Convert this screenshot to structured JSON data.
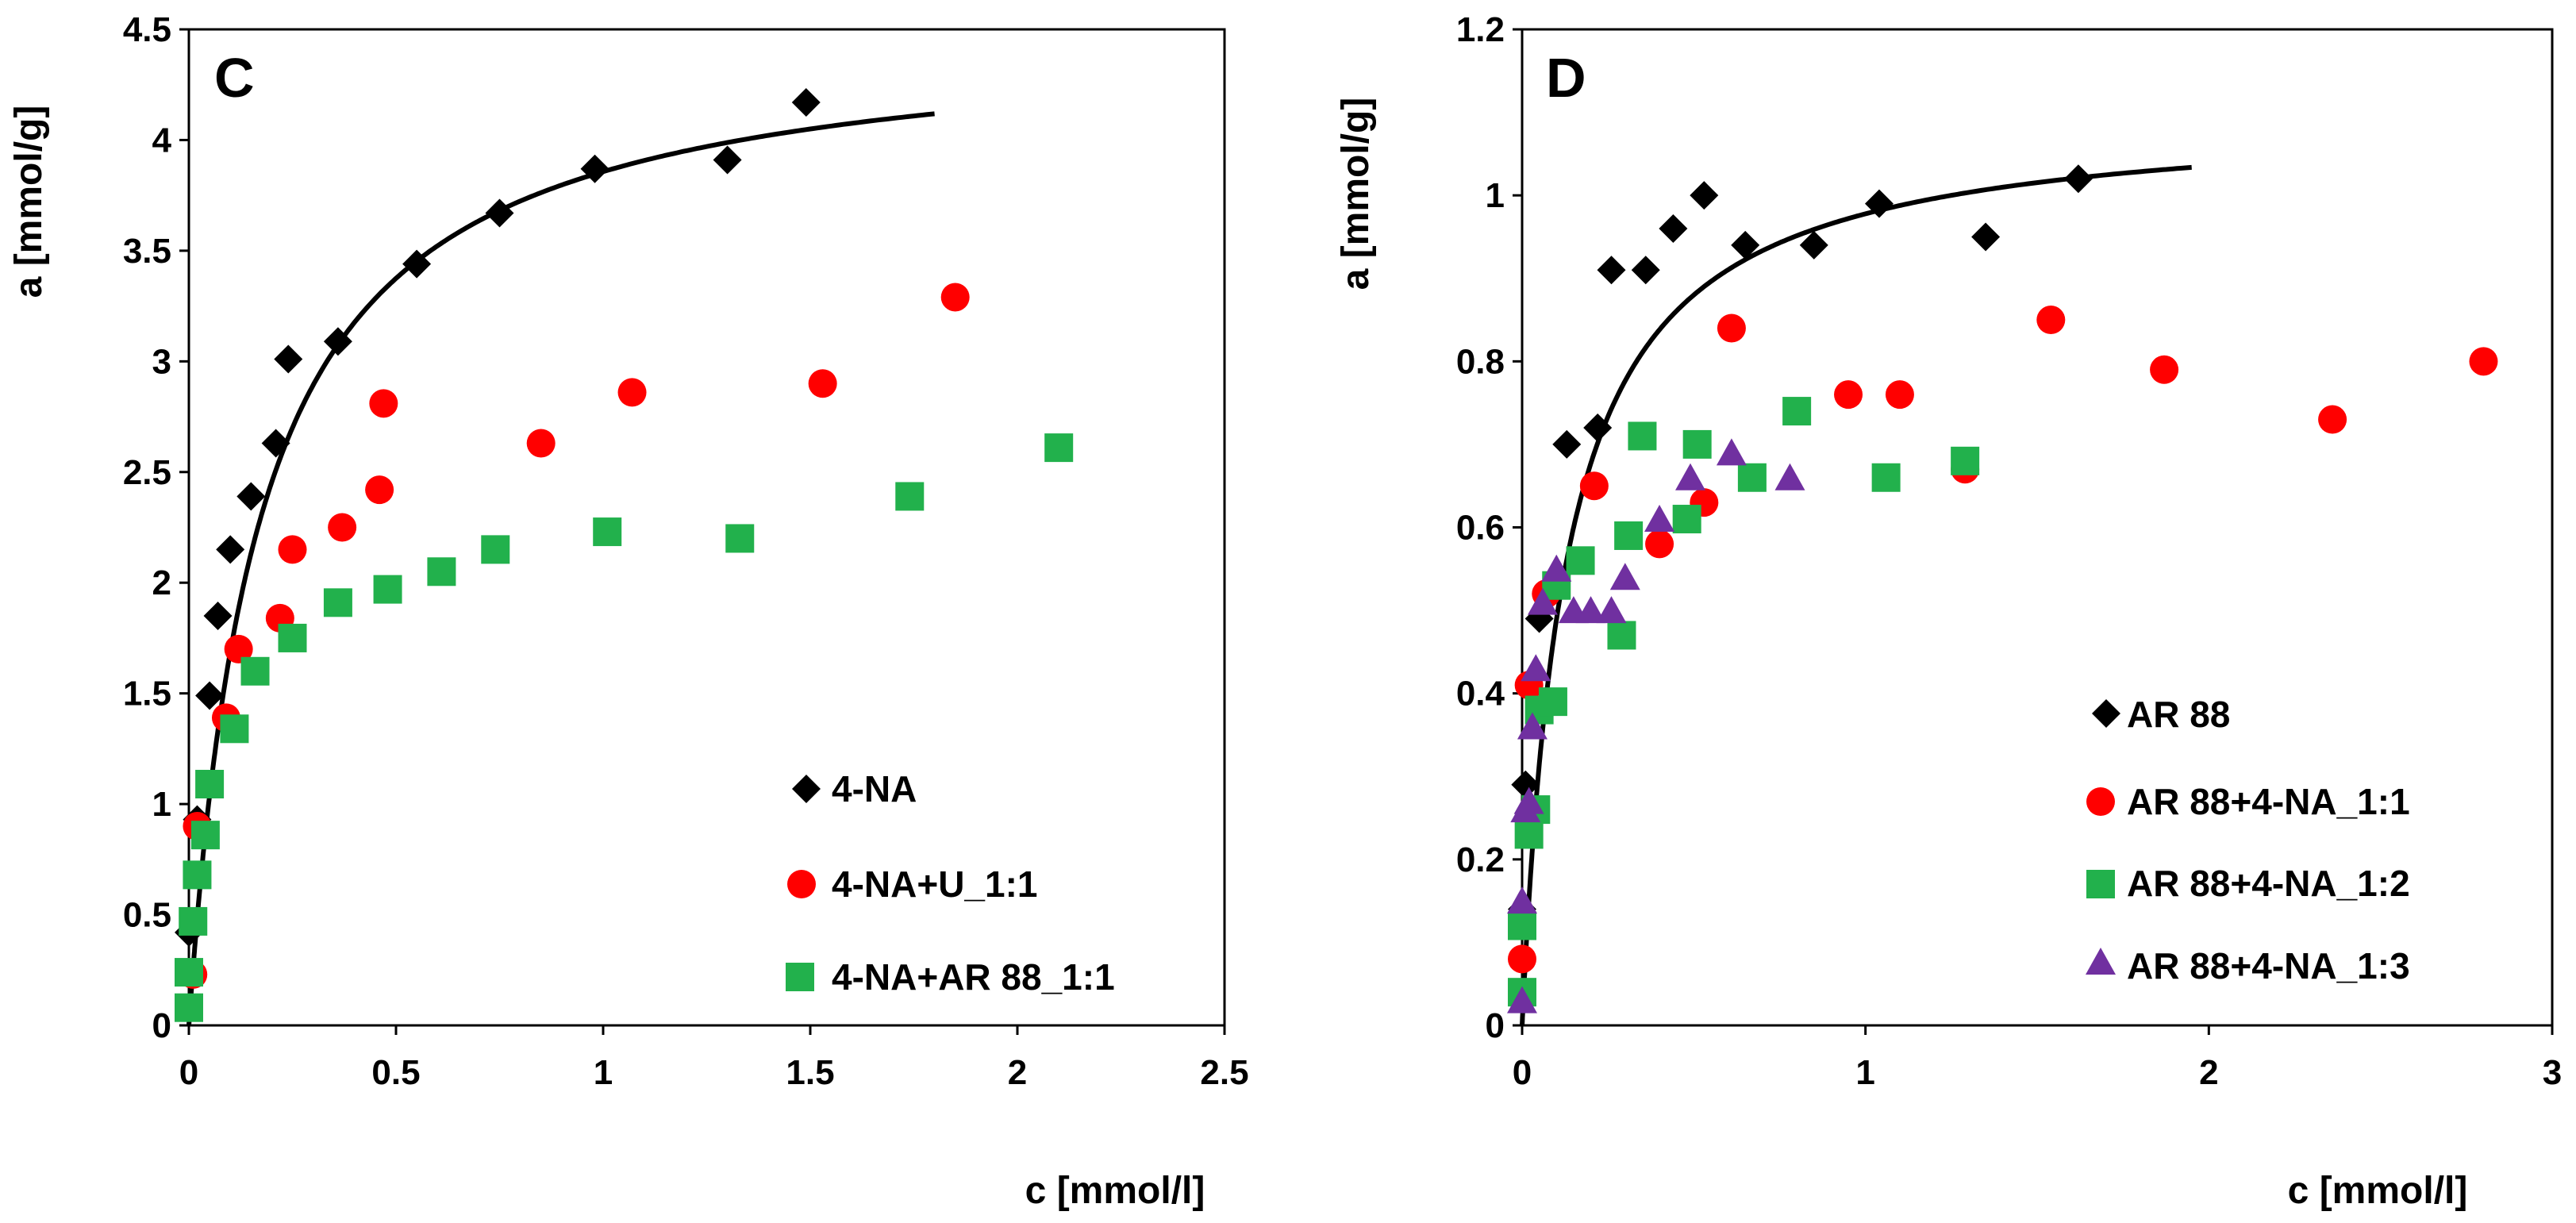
{
  "chart_data": [
    {
      "type": "scatter",
      "panel_label": "C",
      "xlabel": "c [mmol/l]",
      "ylabel": "a [mmol/g]",
      "xlim": [
        0,
        2.5
      ],
      "ylim": [
        0,
        4.5
      ],
      "x_ticks": [
        0,
        0.5,
        1,
        1.5,
        2,
        2.5
      ],
      "x_tick_labels": [
        "0",
        "0.5",
        "1",
        "1.5",
        "2",
        "2.5"
      ],
      "y_ticks": [
        0,
        0.5,
        1,
        1.5,
        2,
        2.5,
        3,
        3.5,
        4,
        4.5
      ],
      "y_tick_labels": [
        "0",
        "0.5",
        "1",
        "1.5",
        "2",
        "2.5",
        "3",
        "3.5",
        "4",
        "4.5"
      ],
      "legend_position": "bottom-right",
      "series": [
        {
          "name": "4-NA",
          "marker": "diamond",
          "color": "#000000",
          "x": [
            0.0,
            0.02,
            0.05,
            0.07,
            0.1,
            0.15,
            0.21,
            0.24,
            0.36,
            0.55,
            0.75,
            0.98,
            1.3,
            1.49
          ],
          "y": [
            0.42,
            0.93,
            1.49,
            1.85,
            2.15,
            2.39,
            2.63,
            3.01,
            3.09,
            3.44,
            3.67,
            3.87,
            3.91,
            4.17
          ]
        },
        {
          "name": "4-NA+U_1:1",
          "marker": "circle",
          "color": "#ff0000",
          "x": [
            0.01,
            0.02,
            0.09,
            0.12,
            0.22,
            0.25,
            0.37,
            0.46,
            0.47,
            0.85,
            1.07,
            1.53,
            1.85
          ],
          "y": [
            0.23,
            0.9,
            1.39,
            1.7,
            1.84,
            2.15,
            2.25,
            2.42,
            2.81,
            2.63,
            2.86,
            2.9,
            3.29
          ]
        },
        {
          "name": "4-NA+AR 88_1:1",
          "marker": "square",
          "color": "#22b14c",
          "x": [
            0.0,
            0.0,
            0.01,
            0.02,
            0.04,
            0.05,
            0.11,
            0.16,
            0.25,
            0.36,
            0.48,
            0.61,
            0.74,
            1.01,
            1.33,
            1.74,
            2.1
          ],
          "y": [
            0.08,
            0.24,
            0.47,
            0.68,
            0.86,
            1.09,
            1.34,
            1.6,
            1.75,
            1.91,
            1.97,
            2.05,
            2.15,
            2.23,
            2.2,
            2.39,
            2.61
          ]
        },
        {
          "name": "4-NA fit",
          "type": "line",
          "color": "#000000",
          "model": "langmuir",
          "qmax": 4.5,
          "K": 6.0,
          "x_range": [
            0,
            1.8
          ]
        }
      ]
    },
    {
      "type": "scatter",
      "panel_label": "D",
      "xlabel": "c [mmol/l]",
      "ylabel": "a [mmol/g]",
      "xlim": [
        0,
        3
      ],
      "ylim": [
        0,
        1.2
      ],
      "x_ticks": [
        0,
        1,
        2,
        3
      ],
      "x_tick_labels": [
        "0",
        "1",
        "2",
        "3"
      ],
      "y_ticks": [
        0,
        0.2,
        0.4,
        0.6,
        0.8,
        1,
        1.2
      ],
      "y_tick_labels": [
        "0",
        "0.2",
        "0.4",
        "0.6",
        "0.8",
        "1",
        "1.2"
      ],
      "legend_position": "bottom-right",
      "series": [
        {
          "name": "AR 88",
          "marker": "diamond",
          "color": "#000000",
          "x": [
            0.0,
            0.01,
            0.05,
            0.13,
            0.22,
            0.26,
            0.36,
            0.44,
            0.53,
            0.65,
            0.85,
            1.04,
            1.35,
            1.62
          ],
          "y": [
            0.14,
            0.29,
            0.49,
            0.7,
            0.72,
            0.91,
            0.91,
            0.96,
            1.0,
            0.94,
            0.94,
            0.99,
            0.95,
            1.02
          ]
        },
        {
          "name": "AR 88+4-NA_1:1",
          "marker": "circle",
          "color": "#ff0000",
          "x": [
            0.0,
            0.02,
            0.07,
            0.21,
            0.4,
            0.53,
            0.61,
            0.95,
            1.1,
            1.29,
            1.54,
            1.87,
            2.36,
            2.8
          ],
          "y": [
            0.08,
            0.41,
            0.52,
            0.65,
            0.58,
            0.63,
            0.84,
            0.76,
            0.76,
            0.67,
            0.85,
            0.79,
            0.73,
            0.8
          ]
        },
        {
          "name": "AR 88+4-NA_1:2",
          "marker": "square",
          "color": "#22b14c",
          "x": [
            0.0,
            0.0,
            0.02,
            0.04,
            0.05,
            0.09,
            0.1,
            0.17,
            0.29,
            0.31,
            0.35,
            0.48,
            0.51,
            0.67,
            0.8,
            1.06,
            1.29
          ],
          "y": [
            0.04,
            0.12,
            0.23,
            0.26,
            0.38,
            0.39,
            0.53,
            0.56,
            0.47,
            0.59,
            0.71,
            0.61,
            0.7,
            0.66,
            0.74,
            0.66,
            0.68
          ]
        },
        {
          "name": "AR 88+4-NA_1:3",
          "marker": "triangle",
          "color": "#7030a0",
          "x": [
            0.0,
            0.0,
            0.01,
            0.02,
            0.03,
            0.04,
            0.06,
            0.1,
            0.15,
            0.2,
            0.26,
            0.3,
            0.4,
            0.49,
            0.61,
            0.78
          ],
          "y": [
            0.03,
            0.15,
            0.26,
            0.27,
            0.36,
            0.43,
            0.51,
            0.55,
            0.5,
            0.5,
            0.5,
            0.54,
            0.61,
            0.66,
            0.69,
            0.66
          ]
        },
        {
          "name": "AR 88 fit",
          "type": "line",
          "color": "#000000",
          "model": "langmuir",
          "qmax": 1.1,
          "K": 8.0,
          "x_range": [
            0,
            1.95
          ]
        }
      ]
    }
  ]
}
